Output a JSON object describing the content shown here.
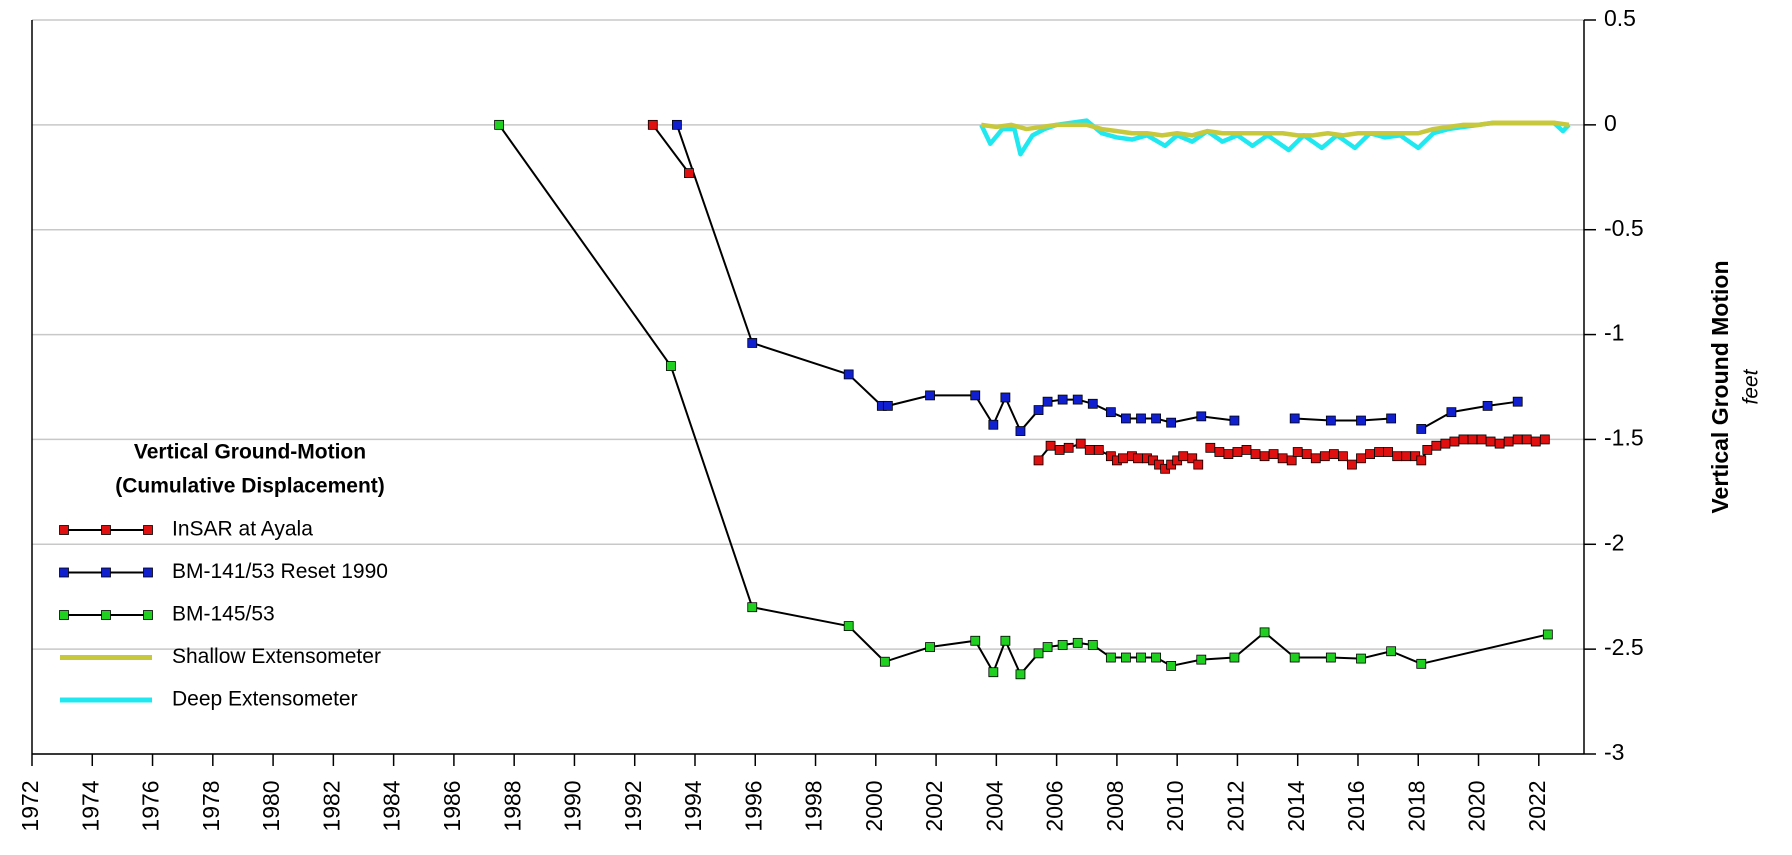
{
  "chart_data": {
    "type": "line",
    "ylabel": "Vertical Ground Motion",
    "yunit": "feet",
    "legend_title": [
      "Vertical Ground-Motion",
      "(Cumulative Displacement)"
    ],
    "legend": "lower-left",
    "grid": true,
    "xlim": [
      1972,
      2023.5
    ],
    "xticks": [
      1972,
      1974,
      1976,
      1978,
      1980,
      1982,
      1984,
      1986,
      1988,
      1990,
      1992,
      1994,
      1996,
      1998,
      2000,
      2002,
      2004,
      2006,
      2008,
      2010,
      2012,
      2014,
      2016,
      2018,
      2020,
      2022
    ],
    "ylim": [
      -3,
      0.5
    ],
    "yticks": [
      0.5,
      0,
      -0.5,
      -1,
      -1.5,
      -2,
      -2.5,
      -3
    ],
    "series": [
      {
        "name": "InSAR at Ayala",
        "color": "#e01010",
        "line_color": "#000000",
        "marker": "square",
        "x": [
          1992.6,
          1993.8,
          null,
          2005.4,
          2005.8,
          2006.1,
          2006.4,
          2006.8,
          2007.1,
          2007.4,
          2007.8,
          2008.0,
          2008.2,
          2008.5,
          2008.7,
          2009.0,
          2009.2,
          2009.4,
          2009.6,
          2009.8,
          2010.0,
          2010.2,
          2010.5,
          2010.7,
          null,
          2011.1,
          2011.4,
          2011.7,
          2012.0,
          2012.3,
          2012.6,
          2012.9,
          2013.2,
          2013.5,
          2013.8,
          2014.0,
          2014.3,
          2014.6,
          2014.9,
          2015.2,
          2015.5,
          2015.8,
          2016.1,
          2016.4,
          2016.7,
          2017.0,
          2017.3,
          2017.6,
          2017.9,
          2018.1,
          2018.3,
          2018.6,
          2018.9,
          2019.2,
          2019.5,
          2019.8,
          2020.1,
          2020.4,
          2020.7,
          2021.0,
          2021.3,
          2021.6,
          2021.9,
          2022.2
        ],
        "values": [
          0,
          -0.23,
          null,
          -1.6,
          -1.53,
          -1.55,
          -1.54,
          -1.52,
          -1.55,
          -1.55,
          -1.58,
          -1.6,
          -1.59,
          -1.58,
          -1.59,
          -1.59,
          -1.6,
          -1.62,
          -1.64,
          -1.62,
          -1.6,
          -1.58,
          -1.59,
          -1.62,
          null,
          -1.54,
          -1.56,
          -1.57,
          -1.56,
          -1.55,
          -1.57,
          -1.58,
          -1.57,
          -1.59,
          -1.6,
          -1.56,
          -1.57,
          -1.59,
          -1.58,
          -1.57,
          -1.58,
          -1.62,
          -1.59,
          -1.57,
          -1.56,
          -1.56,
          -1.58,
          -1.58,
          -1.58,
          -1.6,
          -1.55,
          -1.53,
          -1.52,
          -1.51,
          -1.5,
          -1.5,
          -1.5,
          -1.51,
          -1.52,
          -1.51,
          -1.5,
          -1.5,
          -1.51,
          -1.5
        ]
      },
      {
        "name": "BM-141/53 Reset 1990",
        "color": "#1020d0",
        "line_color": "#000000",
        "marker": "square",
        "x": [
          1993.4,
          1995.9,
          1999.1,
          2000.2,
          2000.4,
          2001.8,
          2003.3,
          2003.9,
          2004.3,
          2004.8,
          2005.4,
          2005.7,
          2006.2,
          2006.7,
          2007.2,
          2007.8,
          2008.3,
          2008.8,
          2009.3,
          2009.8,
          2010.8,
          2011.9,
          null,
          2013.9,
          2015.1,
          2016.1,
          2017.1,
          null,
          2018.1,
          2019.1,
          2020.3,
          2021.3
        ],
        "values": [
          0,
          -1.04,
          -1.19,
          -1.34,
          -1.34,
          -1.29,
          -1.29,
          -1.43,
          -1.3,
          -1.46,
          -1.36,
          -1.32,
          -1.31,
          -1.31,
          -1.33,
          -1.37,
          -1.4,
          -1.4,
          -1.4,
          -1.42,
          -1.39,
          -1.41,
          null,
          -1.4,
          -1.41,
          -1.41,
          -1.4,
          null,
          -1.45,
          -1.37,
          -1.34,
          -1.32
        ]
      },
      {
        "name": "BM-145/53",
        "color": "#20d020",
        "line_color": "#000000",
        "marker": "square",
        "x": [
          1987.5,
          1993.2,
          1995.9,
          1999.1,
          2000.3,
          2001.8,
          2003.3,
          2003.9,
          2004.3,
          2004.8,
          2005.4,
          2005.7,
          2006.2,
          2006.7,
          2007.2,
          2007.8,
          2008.3,
          2008.8,
          2009.3,
          2009.8,
          2010.8,
          2011.9,
          2012.9,
          2013.9,
          2015.1,
          2016.1,
          2017.1,
          2018.1,
          2022.3
        ],
        "values": [
          0,
          -1.15,
          -2.3,
          -2.39,
          -2.56,
          -2.49,
          -2.46,
          -2.61,
          -2.46,
          -2.62,
          -2.52,
          -2.49,
          -2.48,
          -2.47,
          -2.48,
          -2.54,
          -2.54,
          -2.54,
          -2.54,
          -2.58,
          -2.55,
          -2.54,
          -2.42,
          -2.54,
          -2.54,
          -2.545,
          -2.51,
          -2.57,
          -2.43
        ]
      },
      {
        "name": "Shallow Extensometer",
        "color": "#c8c83c",
        "line_color": "#c8c83c",
        "marker": null,
        "x": [
          2003.5,
          2004,
          2004.5,
          2005,
          2005.5,
          2006,
          2006.5,
          2007,
          2007.5,
          2008,
          2008.5,
          2009,
          2009.5,
          2010,
          2010.5,
          2011,
          2011.5,
          2012,
          2012.5,
          2013,
          2013.5,
          2014,
          2014.5,
          2015,
          2015.5,
          2016,
          2016.5,
          2017,
          2017.5,
          2018,
          2018.5,
          2019,
          2019.5,
          2020,
          2020.5,
          2021,
          2021.5,
          2022,
          2022.5,
          2023
        ],
        "values": [
          0,
          -0.01,
          0,
          -0.02,
          -0.01,
          0,
          0,
          0,
          -0.02,
          -0.03,
          -0.04,
          -0.04,
          -0.05,
          -0.04,
          -0.05,
          -0.03,
          -0.04,
          -0.04,
          -0.04,
          -0.04,
          -0.04,
          -0.05,
          -0.05,
          -0.04,
          -0.05,
          -0.04,
          -0.04,
          -0.04,
          -0.04,
          -0.04,
          -0.02,
          -0.01,
          0,
          0,
          0.01,
          0.01,
          0.01,
          0.01,
          0.01,
          0
        ]
      },
      {
        "name": "Deep Extensometer",
        "color": "#20e8f0",
        "line_color": "#20e8f0",
        "marker": null,
        "x": [
          2003.5,
          2003.8,
          2004.2,
          2004.6,
          2004.8,
          2005.2,
          2005.6,
          2006,
          2006.5,
          2007,
          2007.5,
          2008,
          2008.5,
          2009,
          2009.6,
          2010,
          2010.5,
          2011,
          2011.5,
          2012,
          2012.5,
          2013,
          2013.7,
          2014.2,
          2014.8,
          2015.3,
          2015.9,
          2016.4,
          2016.9,
          2017.4,
          2018,
          2018.5,
          2019,
          2019.5,
          2020,
          2020.5,
          2021,
          2021.5,
          2022,
          2022.5,
          2022.8,
          2023
        ],
        "values": [
          0,
          -0.09,
          -0.02,
          -0.02,
          -0.14,
          -0.05,
          -0.02,
          0,
          0.01,
          0.02,
          -0.04,
          -0.06,
          -0.07,
          -0.05,
          -0.1,
          -0.05,
          -0.08,
          -0.03,
          -0.08,
          -0.05,
          -0.1,
          -0.05,
          -0.12,
          -0.05,
          -0.11,
          -0.05,
          -0.11,
          -0.04,
          -0.06,
          -0.05,
          -0.11,
          -0.04,
          -0.02,
          -0.01,
          0,
          0.01,
          0.01,
          0.01,
          0.01,
          0.01,
          -0.03,
          0
        ]
      }
    ]
  }
}
